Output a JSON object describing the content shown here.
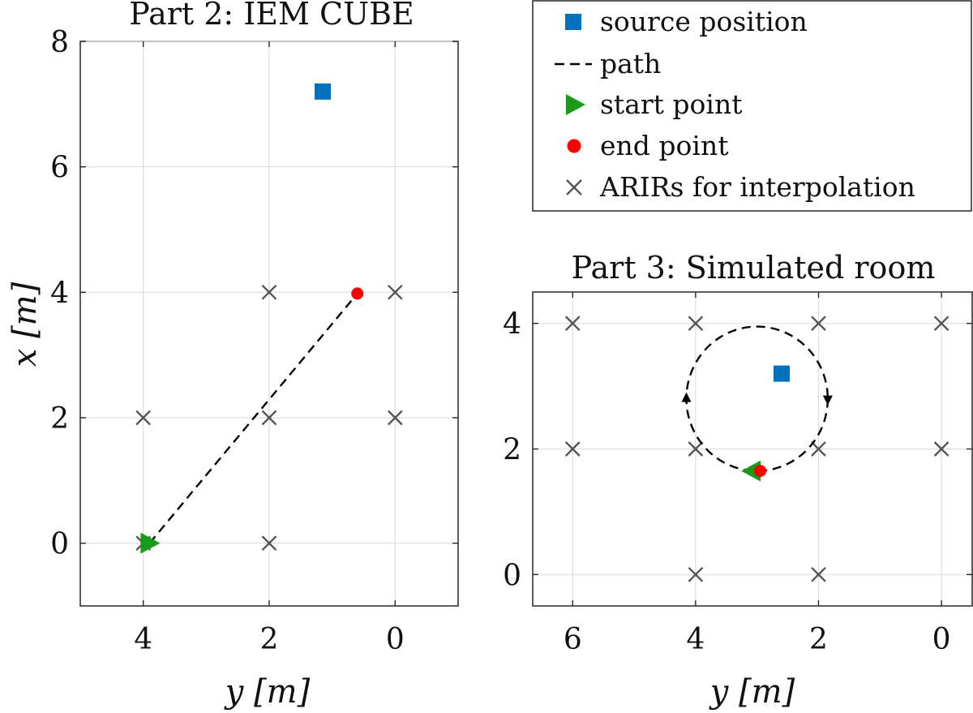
{
  "chart_data": [
    {
      "type": "scatter",
      "title": "Part 2: IEM CUBE",
      "xlabel": "y [m]",
      "ylabel": "x [m]",
      "xlim": [
        5,
        -1
      ],
      "ylim": [
        -1,
        8
      ],
      "x_ticks": [
        4,
        2,
        0
      ],
      "y_ticks": [
        0,
        2,
        4,
        6,
        8
      ],
      "x_tick_labels": [
        "4",
        "2",
        "0"
      ],
      "y_tick_labels": [
        "0",
        "2",
        "4",
        "6",
        "8"
      ],
      "grid": true,
      "series": [
        {
          "name": "source position",
          "marker": "square",
          "color": "#0072BD",
          "points": [
            [
              1.15,
              7.2
            ]
          ]
        },
        {
          "name": "path",
          "style": "dashed",
          "color": "#000000",
          "points": [
            [
              3.9,
              0.0
            ],
            [
              0.6,
              3.98
            ]
          ]
        },
        {
          "name": "start point",
          "marker": "triangle-right",
          "color": "#1a9a1a",
          "points": [
            [
              3.9,
              0.0
            ]
          ]
        },
        {
          "name": "end point",
          "marker": "circle",
          "color": "#ff0000",
          "points": [
            [
              0.6,
              3.98
            ]
          ]
        },
        {
          "name": "ARIRs for interpolation",
          "marker": "x",
          "color": "#555555",
          "points": [
            [
              4,
              0
            ],
            [
              2,
              0
            ],
            [
              4,
              2
            ],
            [
              2,
              2
            ],
            [
              0,
              2
            ],
            [
              2,
              4
            ],
            [
              0,
              4
            ]
          ]
        }
      ]
    },
    {
      "type": "scatter",
      "title": "Part 3: Simulated room",
      "xlabel": "y [m]",
      "ylabel": "",
      "xlim": [
        6.65,
        -0.5
      ],
      "ylim": [
        -0.5,
        4.5
      ],
      "x_ticks": [
        6,
        4,
        2,
        0
      ],
      "y_ticks": [
        0,
        2,
        4
      ],
      "x_tick_labels": [
        "6",
        "4",
        "2",
        "0"
      ],
      "y_tick_labels": [
        "0",
        "2",
        "4"
      ],
      "grid": true,
      "series": [
        {
          "name": "source position",
          "marker": "square",
          "color": "#0072BD",
          "points": [
            [
              2.6,
              3.2
            ]
          ]
        },
        {
          "name": "path",
          "style": "dashed",
          "color": "#000000",
          "circle": {
            "center": [
              3.0,
              2.8
            ],
            "radius": 1.15
          }
        },
        {
          "name": "start point",
          "marker": "triangle-left",
          "color": "#1a9a1a",
          "points": [
            [
              3.1,
              1.65
            ]
          ]
        },
        {
          "name": "end point",
          "marker": "circle",
          "color": "#ff0000",
          "points": [
            [
              2.95,
              1.65
            ]
          ]
        },
        {
          "name": "ARIRs for interpolation",
          "marker": "x",
          "color": "#555555",
          "points": [
            [
              4,
              0
            ],
            [
              2,
              0
            ],
            [
              6,
              2
            ],
            [
              4,
              2
            ],
            [
              2,
              2
            ],
            [
              0,
              2
            ],
            [
              6,
              4
            ],
            [
              4,
              4
            ],
            [
              2,
              4
            ],
            [
              0,
              4
            ]
          ]
        }
      ]
    }
  ],
  "legend": {
    "placement": "top-right",
    "entries": [
      {
        "label": "source position",
        "marker": "square",
        "color": "#0072BD"
      },
      {
        "label": "path",
        "marker": "dashed-line",
        "color": "#000000"
      },
      {
        "label": "start point",
        "marker": "triangle-right",
        "color": "#1a9a1a"
      },
      {
        "label": "end point",
        "marker": "circle",
        "color": "#ff0000"
      },
      {
        "label": "ARIRs for interpolation",
        "marker": "x",
        "color": "#555555"
      }
    ]
  }
}
